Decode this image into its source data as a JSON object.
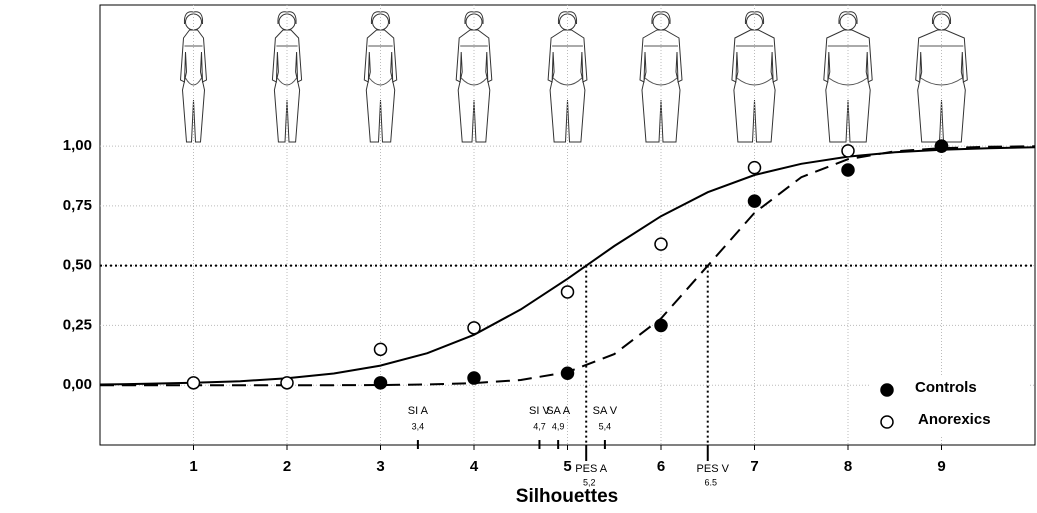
{
  "chart_data": {
    "type": "scatter",
    "x_label": "Silhouettes",
    "xlim": [
      0,
      10
    ],
    "xticks": [
      1,
      2,
      3,
      4,
      5,
      6,
      7,
      8,
      9
    ],
    "ylim": [
      -0.25,
      1.59
    ],
    "yticks": [
      {
        "value": 0,
        "label": "0,00"
      },
      {
        "value": 0.25,
        "label": "0,25"
      },
      {
        "value": 0.5,
        "label": "0,50"
      },
      {
        "value": 0.75,
        "label": "0,75"
      },
      {
        "value": 1,
        "label": "1,00"
      }
    ],
    "grid": true,
    "legend": "lower right",
    "series": [
      {
        "name": "Controls",
        "color": "#000000",
        "fill": "filled",
        "x": [
          3,
          4,
          5,
          6,
          7,
          8,
          9
        ],
        "values": [
          0.01,
          0.03,
          0.05,
          0.25,
          0.77,
          0.9,
          1.0
        ]
      },
      {
        "name": "Anorexics",
        "color": "#000000",
        "fill": "open",
        "x": [
          1,
          2,
          3,
          4,
          5,
          6,
          7,
          8,
          9
        ],
        "values": [
          0.01,
          0.01,
          0.15,
          0.24,
          0.39,
          0.59,
          0.91,
          0.98,
          1.0
        ]
      }
    ],
    "curves": [
      {
        "style": "dashed",
        "x": [
          0,
          0.5,
          1,
          1.5,
          2,
          2.5,
          3,
          3.5,
          4,
          4.5,
          5,
          5.5,
          6,
          6.5,
          7,
          7.5,
          8,
          8.5,
          9,
          9.5,
          10
        ],
        "values": [
          0,
          0,
          0,
          0,
          0,
          0,
          0.001,
          0.003,
          0.009,
          0.022,
          0.055,
          0.13,
          0.279,
          0.5,
          0.721,
          0.87,
          0.945,
          0.978,
          0.991,
          0.997,
          0.999
        ]
      },
      {
        "style": "solid",
        "x": [
          0,
          0.5,
          1,
          1.5,
          2,
          2.5,
          3,
          3.5,
          4,
          4.5,
          5,
          5.5,
          6,
          6.5,
          7,
          7.5,
          8,
          8.5,
          9,
          9.5,
          10
        ],
        "values": [
          0.003,
          0.006,
          0.01,
          0.017,
          0.029,
          0.049,
          0.082,
          0.134,
          0.211,
          0.317,
          0.445,
          0.582,
          0.707,
          0.807,
          0.879,
          0.926,
          0.956,
          0.974,
          0.985,
          0.991,
          0.995
        ]
      }
    ],
    "threshold": 0.5,
    "markers": [
      {
        "label": "SI A",
        "value_label": "3,4",
        "x": 3.4
      },
      {
        "label": "SI V",
        "value_label": "4,7",
        "x": 4.7
      },
      {
        "label": "SA A",
        "value_label": "4,9",
        "x": 4.9
      },
      {
        "label": "SA V",
        "value_label": "5,4",
        "x": 5.4
      },
      {
        "label": "PES A",
        "value_label": "5,2",
        "x": 5.2
      },
      {
        "label": "PES V",
        "value_label": "6.5",
        "x": 6.5
      }
    ]
  }
}
